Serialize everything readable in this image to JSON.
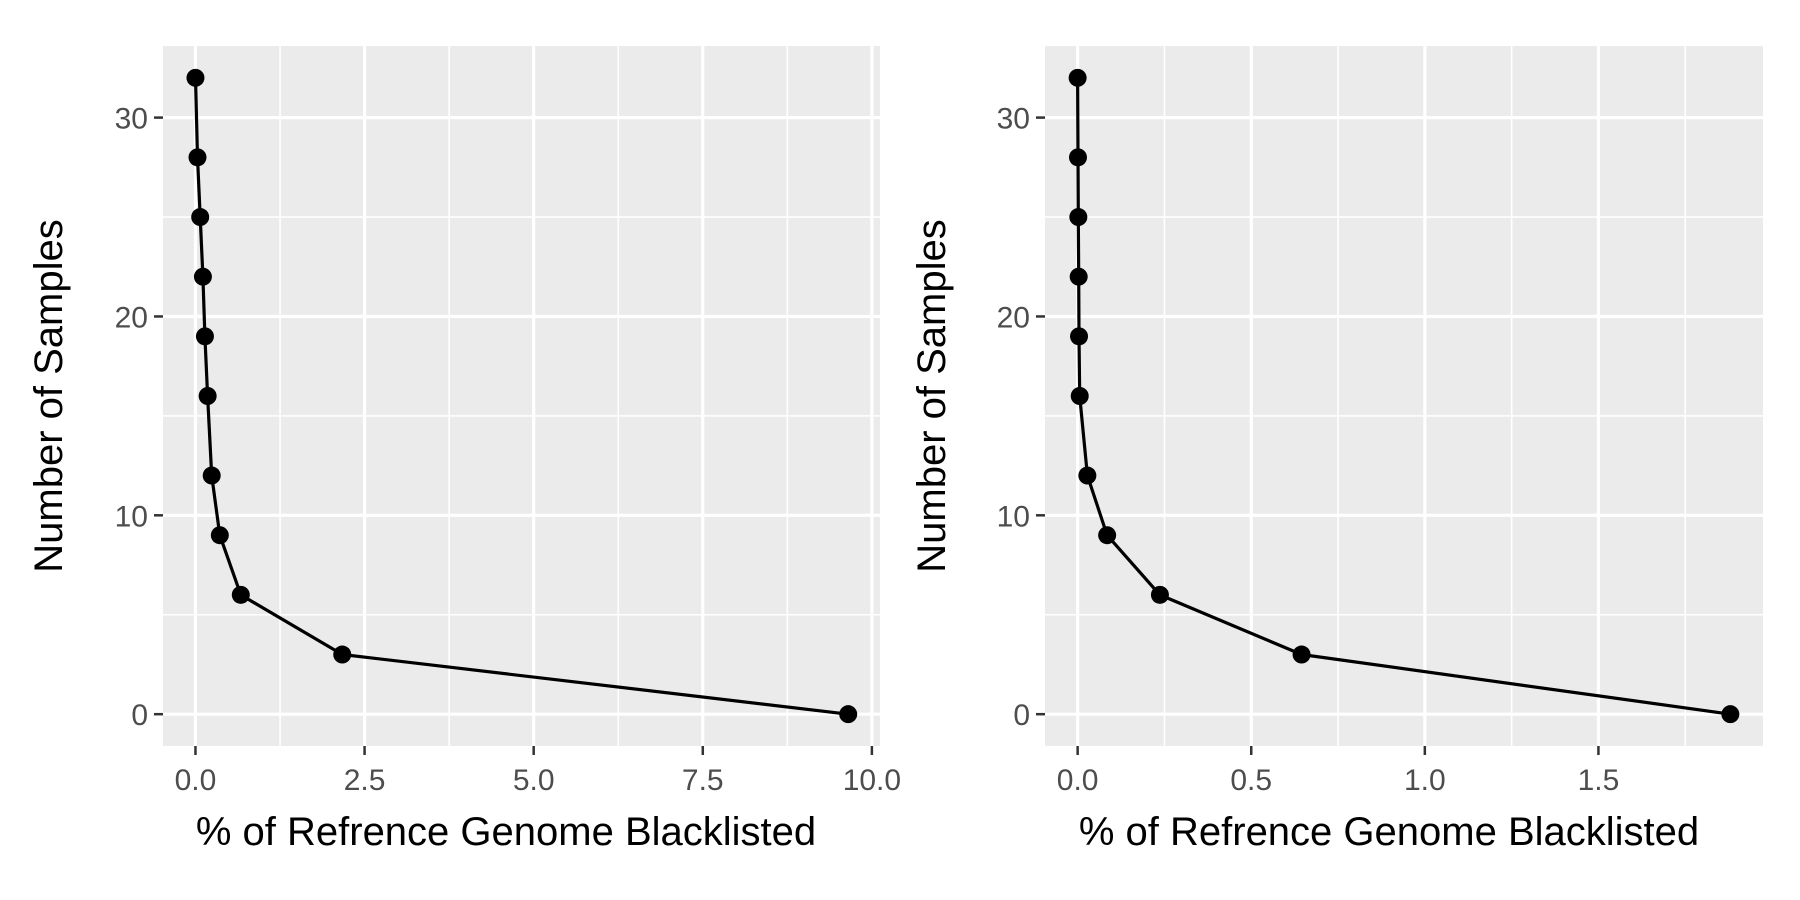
{
  "chart_data": [
    {
      "type": "line",
      "title": "",
      "xlabel": "% of Refrence Genome Blacklisted",
      "ylabel": "Number of Samples",
      "xlim": [
        -0.48,
        10.12
      ],
      "ylim": [
        -1.6,
        33.6
      ],
      "xticks": [
        0,
        2.5,
        5,
        7.5,
        10
      ],
      "xtick_labels": [
        "0.0",
        "2.5",
        "5.0",
        "7.5",
        "10.0"
      ],
      "xminor": [
        1.25,
        3.75,
        6.25,
        8.75
      ],
      "yticks": [
        0,
        10,
        20,
        30
      ],
      "ytick_labels": [
        "0",
        "10",
        "20",
        "30"
      ],
      "yminor": [
        5,
        15,
        25
      ],
      "grid": true,
      "x": [
        9.65,
        2.17,
        0.67,
        0.36,
        0.24,
        0.18,
        0.14,
        0.11,
        0.07,
        0.03,
        0.0
      ],
      "y": [
        0,
        3,
        6,
        9,
        12,
        16,
        19,
        22,
        25,
        28,
        32
      ],
      "color": "#000000"
    },
    {
      "type": "line",
      "title": "",
      "xlabel": "% of Refrence Genome Blacklisted",
      "ylabel": "Number of Samples",
      "xlim": [
        -0.094,
        1.974
      ],
      "ylim": [
        -1.6,
        33.6
      ],
      "xticks": [
        0,
        0.5,
        1.0,
        1.5
      ],
      "xtick_labels": [
        "0.0",
        "0.5",
        "1.0",
        "1.5"
      ],
      "xminor": [
        0.25,
        0.75,
        1.25,
        1.75
      ],
      "yticks": [
        0,
        10,
        20,
        30
      ],
      "ytick_labels": [
        "0",
        "10",
        "20",
        "30"
      ],
      "yminor": [
        5,
        15,
        25
      ],
      "grid": true,
      "x": [
        1.88,
        0.645,
        0.237,
        0.085,
        0.028,
        0.006,
        0.004,
        0.003,
        0.002,
        0.001,
        0.0
      ],
      "y": [
        0,
        3,
        6,
        9,
        12,
        16,
        19,
        22,
        25,
        28,
        32
      ],
      "color": "#000000"
    }
  ]
}
